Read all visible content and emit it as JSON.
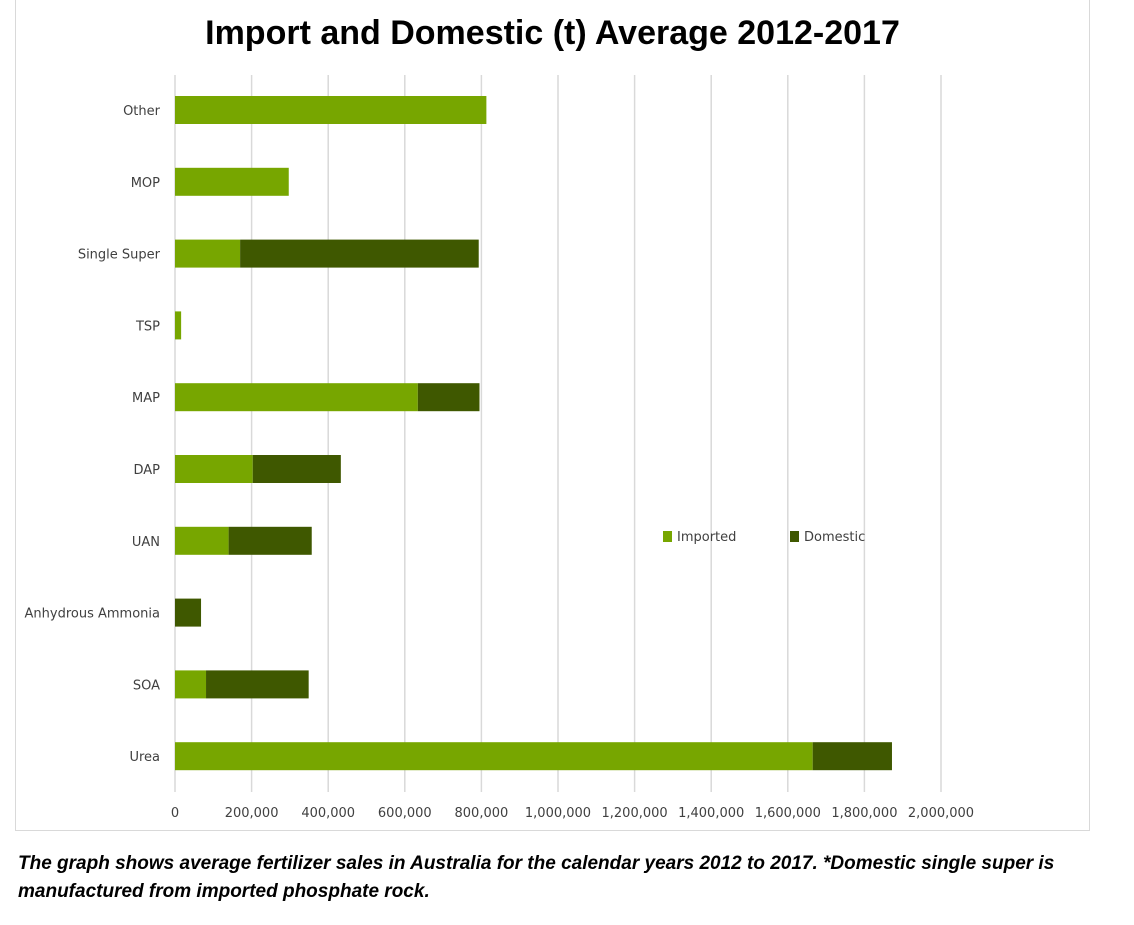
{
  "chart_data": {
    "type": "bar",
    "orientation": "horizontal",
    "stacked": true,
    "title": "Import and Domestic (t) Average 2012-2017",
    "categories": [
      "Other",
      "MOP",
      "Single Super",
      "TSP",
      "MAP",
      "DAP",
      "UAN",
      "Anhydrous Ammonia",
      "SOA",
      "Urea"
    ],
    "series": [
      {
        "name": "Imported",
        "color": "#77a600",
        "values": [
          813000,
          297000,
          170000,
          16000,
          634000,
          203000,
          140000,
          0,
          81000,
          1665000
        ]
      },
      {
        "name": "Domestic",
        "color": "#3f5800",
        "values": [
          0,
          0,
          623000,
          0,
          161000,
          230000,
          217000,
          68000,
          268000,
          207000
        ]
      }
    ],
    "xlim": [
      0,
      2000000
    ],
    "xticks": [
      "0",
      "200,000",
      "400,000",
      "600,000",
      "800,000",
      "1,000,000",
      "1,200,000",
      "1,400,000",
      "1,600,000",
      "1,800,000",
      "2,000,000"
    ],
    "grid": true,
    "legend": "center-right"
  },
  "caption": "The graph shows average fertilizer sales in Australia for the calendar years 2012 to 2017. *Domestic single super is manufactured from imported phosphate rock."
}
